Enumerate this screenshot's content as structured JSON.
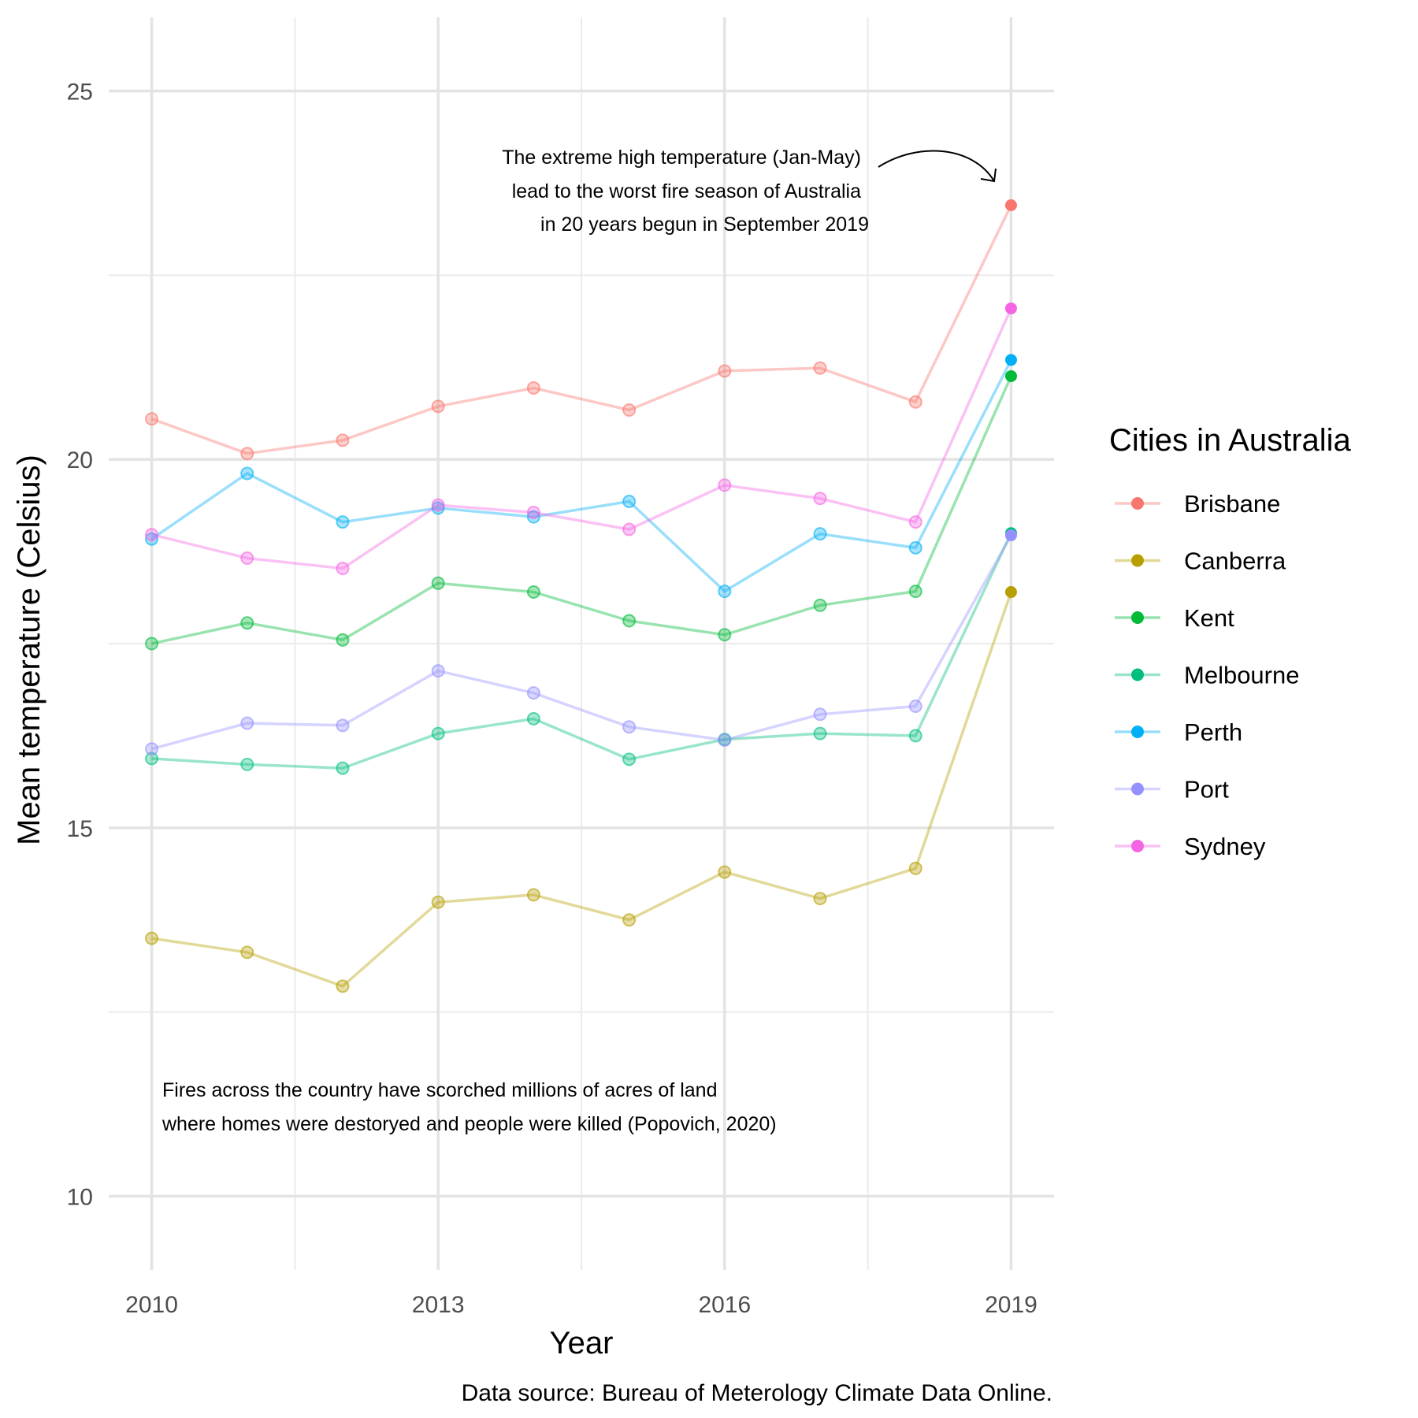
{
  "chart_data": {
    "type": "line",
    "xlabel": "Year",
    "ylabel": "Mean temperature (Celsius)",
    "caption": "Data source: Bureau of Meterology Climate Data Online.",
    "legend_title": "Cities in Australia",
    "legend_position": "right",
    "grid": true,
    "xlim": [
      2009.55,
      2019.45
    ],
    "ylim": [
      9.0,
      26.0
    ],
    "x_ticks": [
      2010,
      2013,
      2016,
      2019
    ],
    "x_tick_labels": [
      "2010",
      "2013",
      "2016",
      "2019"
    ],
    "y_ticks": [
      10,
      15,
      20,
      25
    ],
    "y_tick_labels": [
      "10",
      "15",
      "20",
      "25"
    ],
    "x": [
      2010,
      2011,
      2012,
      2013,
      2014,
      2015,
      2016,
      2017,
      2018,
      2019
    ],
    "series": [
      {
        "name": "Brisbane",
        "color": "#F8766D",
        "values": [
          20.55,
          20.08,
          20.26,
          20.72,
          20.97,
          20.67,
          21.2,
          21.24,
          20.78,
          23.45
        ]
      },
      {
        "name": "Canberra",
        "color": "#B79F00",
        "values": [
          13.5,
          13.31,
          12.85,
          13.99,
          14.09,
          13.75,
          14.4,
          14.04,
          14.45,
          18.2
        ]
      },
      {
        "name": "Kent",
        "color": "#00BA38",
        "values": [
          17.5,
          17.78,
          17.55,
          18.32,
          18.2,
          17.81,
          17.62,
          18.02,
          18.21,
          21.13
        ]
      },
      {
        "name": "Melbourne",
        "color": "#00BF7D",
        "values": [
          15.94,
          15.86,
          15.81,
          16.28,
          16.48,
          15.93,
          16.2,
          16.28,
          16.25,
          19.0
        ]
      },
      {
        "name": "Perth",
        "color": "#00B0F6",
        "values": [
          18.92,
          19.81,
          19.15,
          19.34,
          19.22,
          19.43,
          18.21,
          18.99,
          18.8,
          21.35
        ]
      },
      {
        "name": "Port",
        "color": "#9590FF",
        "values": [
          16.07,
          16.42,
          16.39,
          17.13,
          16.83,
          16.37,
          16.19,
          16.54,
          16.65,
          18.97
        ]
      },
      {
        "name": "Sydney",
        "color": "#F564E3",
        "values": [
          18.98,
          18.66,
          18.52,
          19.38,
          19.28,
          19.05,
          19.65,
          19.47,
          19.15,
          22.05
        ]
      }
    ],
    "annotations": [
      {
        "lines": [
          "The extreme high temperature (Jan-May)",
          "lead to the worst fire season of Australia",
          "in 20 years begun in September 2019"
        ]
      },
      {
        "lines": [
          "Fires across the country have scorched millions of acres of land",
          "where homes were destoryed and people were killed (Popovich, 2020)"
        ]
      }
    ]
  }
}
